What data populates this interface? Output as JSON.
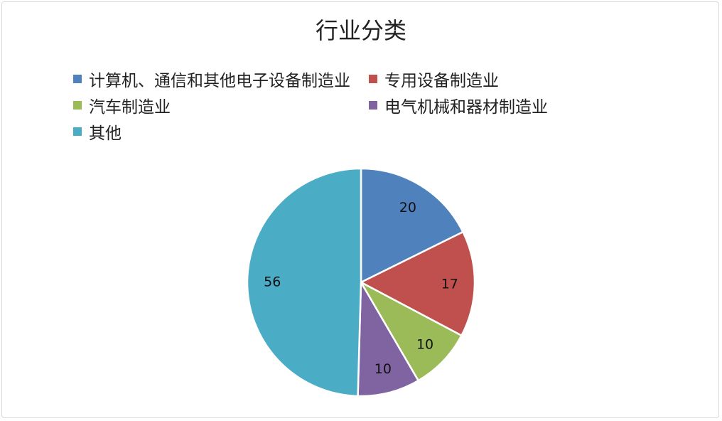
{
  "chart_data": {
    "type": "pie",
    "title": "行业分类",
    "categories": [
      "计算机、通信和其他电子设备制造业",
      "专用设备制造业",
      "汽车制造业",
      "电气机械和器材制造业",
      "其他"
    ],
    "values": [
      20,
      17,
      10,
      10,
      56
    ],
    "colors": [
      "#4f81bd",
      "#c0504d",
      "#9bbb59",
      "#8064a2",
      "#4bacc6"
    ],
    "data_labels": [
      "20",
      "17",
      "10",
      "10",
      "56"
    ],
    "legend_position": "top",
    "start_angle": "12 o'clock",
    "direction": "clockwise"
  }
}
